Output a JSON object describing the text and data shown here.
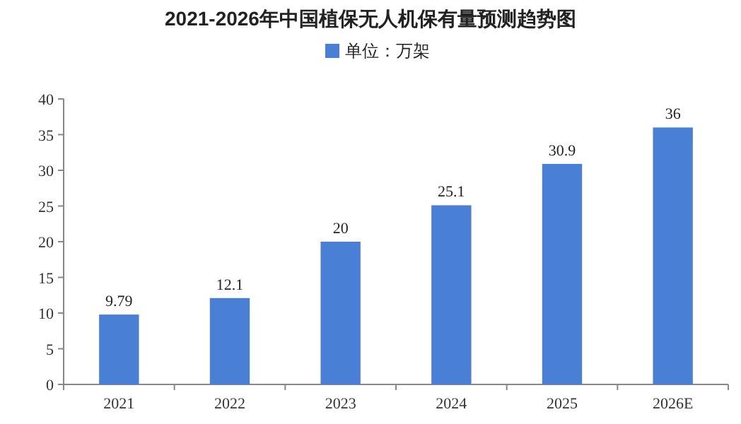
{
  "chart_data": {
    "type": "bar",
    "title": "2021-2026年中国植保无人机保有量预测趋势图",
    "categories": [
      "2021",
      "2022",
      "2023",
      "2024",
      "2025",
      "2026E"
    ],
    "series": [
      {
        "name": "单位：万架",
        "color": "#4a7fd6",
        "values": [
          9.79,
          12.1,
          20,
          25.1,
          30.9,
          36
        ]
      }
    ],
    "ylim": [
      0,
      40
    ],
    "yticks": [
      0,
      5,
      10,
      15,
      20,
      25,
      30,
      35,
      40
    ],
    "grid": false,
    "legend": "top",
    "data_labels": true
  }
}
